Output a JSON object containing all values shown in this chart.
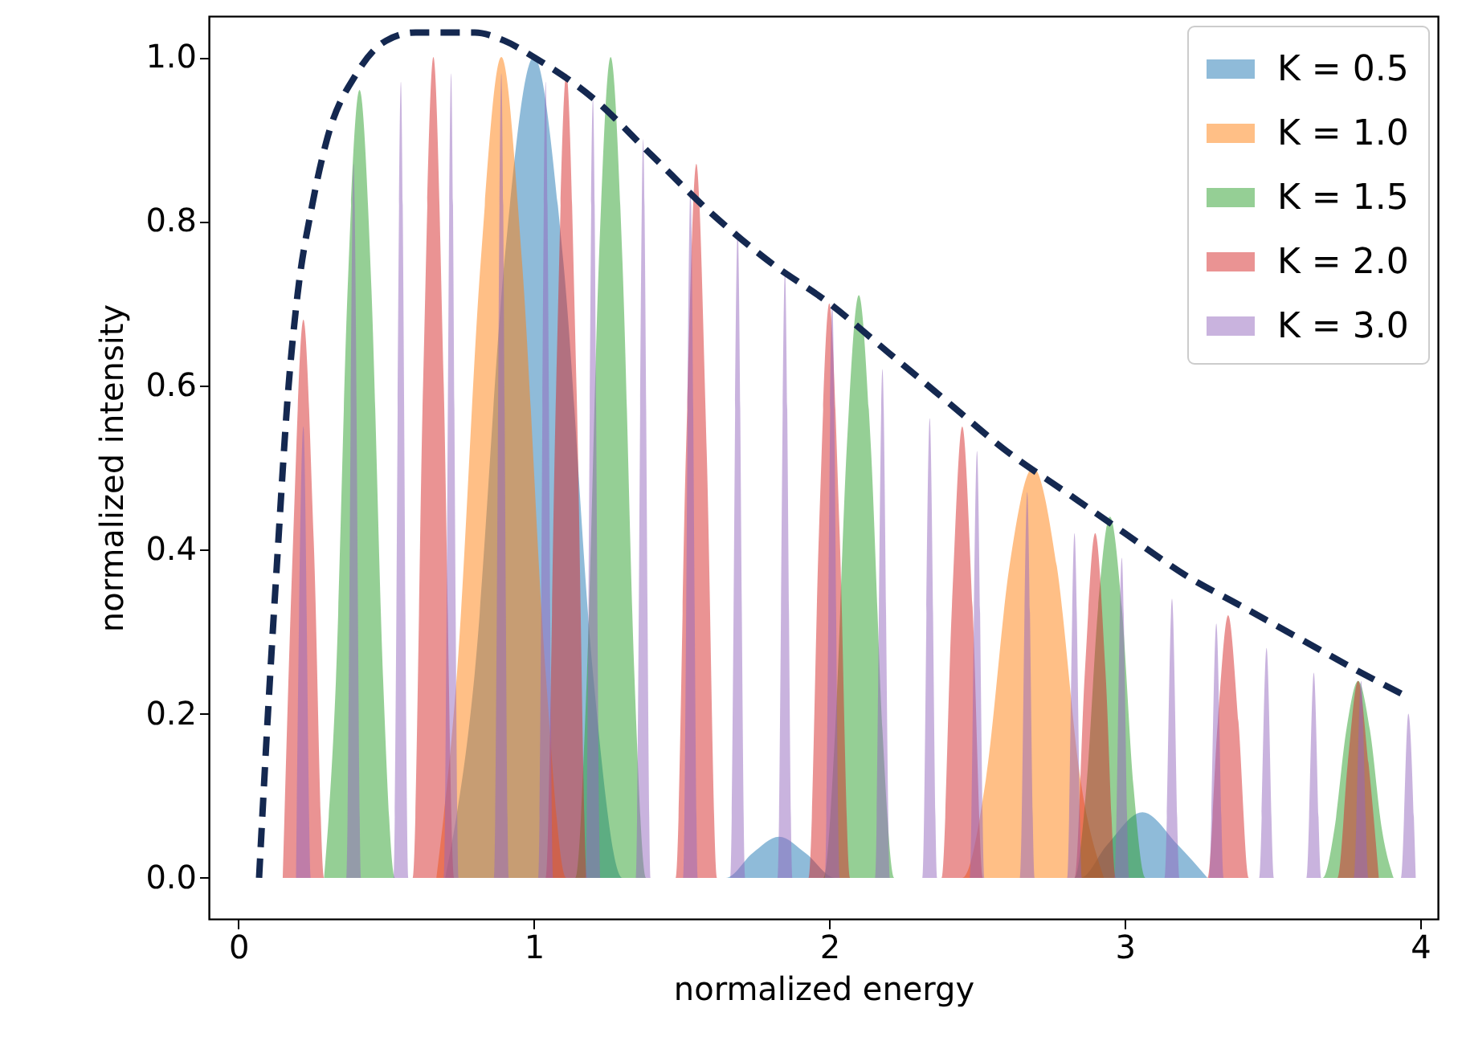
{
  "chart_data": {
    "type": "area",
    "xlabel": "normalized energy",
    "ylabel": "normalized intensity",
    "xlim": [
      -0.1,
      4.06
    ],
    "ylim": [
      -0.05,
      1.05
    ],
    "xticks": [
      {
        "value": 0,
        "label": "0"
      },
      {
        "value": 1,
        "label": "1"
      },
      {
        "value": 2,
        "label": "2"
      },
      {
        "value": 3,
        "label": "3"
      },
      {
        "value": 4,
        "label": "4"
      }
    ],
    "yticks": [
      {
        "value": 0,
        "label": "0.0"
      },
      {
        "value": 0.2,
        "label": "0.2"
      },
      {
        "value": 0.4,
        "label": "0.4"
      },
      {
        "value": 0.6,
        "label": "0.6"
      },
      {
        "value": 0.8,
        "label": "0.8"
      },
      {
        "value": 1,
        "label": "1.0"
      }
    ],
    "legend": "top right",
    "series": [
      {
        "name": "K = 0.5",
        "color": "#1f77b4",
        "x": [
          0.7,
          0.8,
          0.9,
          1.0,
          1.1,
          1.2,
          1.3,
          1.65,
          1.74,
          1.83,
          1.92,
          2.02,
          2.85,
          2.94,
          3.06,
          3.18,
          3.28
        ],
        "values": [
          0,
          0.25,
          0.75,
          1.0,
          0.75,
          0.25,
          0,
          0,
          0.03,
          0.05,
          0.03,
          0,
          0,
          0.04,
          0.08,
          0.04,
          0
        ]
      },
      {
        "name": "K = 1.0",
        "color": "#ff7f0e",
        "x": [
          0.67,
          0.74,
          0.82,
          0.89,
          0.96,
          1.04,
          1.11,
          2.45,
          2.53,
          2.61,
          2.69,
          2.77,
          2.85,
          2.93
        ],
        "values": [
          0,
          0.25,
          0.75,
          1.0,
          0.75,
          0.25,
          0,
          0,
          0.12,
          0.38,
          0.5,
          0.38,
          0.12,
          0
        ]
      },
      {
        "name": "K = 1.5",
        "color": "#2ca02c",
        "x": [
          0.29,
          0.33,
          0.37,
          0.41,
          0.45,
          0.49,
          0.53,
          1.14,
          1.18,
          1.22,
          1.26,
          1.3,
          1.34,
          1.38,
          1.98,
          2.02,
          2.06,
          2.1,
          2.14,
          2.18,
          2.22,
          2.83,
          2.87,
          2.91,
          2.95,
          2.99,
          3.03,
          3.07,
          3.67,
          3.71,
          3.75,
          3.79,
          3.83,
          3.87,
          3.91
        ],
        "values": [
          0,
          0.24,
          0.72,
          0.96,
          0.72,
          0.24,
          0,
          0,
          0.25,
          0.75,
          1.0,
          0.75,
          0.25,
          0,
          0,
          0.18,
          0.53,
          0.71,
          0.53,
          0.18,
          0,
          0,
          0.11,
          0.33,
          0.44,
          0.33,
          0.11,
          0,
          0,
          0.06,
          0.18,
          0.24,
          0.18,
          0.06,
          0
        ]
      },
      {
        "name": "K = 2.0",
        "color": "#d62728",
        "x": [
          0.15,
          0.185,
          0.22,
          0.255,
          0.29,
          0.59,
          0.625,
          0.66,
          0.695,
          0.73,
          1.04,
          1.075,
          1.11,
          1.145,
          1.18,
          1.48,
          1.515,
          1.55,
          1.585,
          1.62,
          1.93,
          1.965,
          2.0,
          2.035,
          2.07,
          2.38,
          2.415,
          2.45,
          2.485,
          2.52,
          2.83,
          2.865,
          2.9,
          2.935,
          2.97,
          3.28,
          3.315,
          3.35,
          3.385,
          3.42,
          3.72,
          3.755,
          3.79,
          3.825,
          3.86
        ],
        "values": [
          0,
          0.41,
          0.68,
          0.41,
          0,
          0,
          0.6,
          1.0,
          0.6,
          0,
          0,
          0.59,
          0.98,
          0.59,
          0,
          0,
          0.52,
          0.87,
          0.52,
          0,
          0,
          0.42,
          0.7,
          0.42,
          0,
          0,
          0.33,
          0.55,
          0.33,
          0,
          0,
          0.25,
          0.42,
          0.25,
          0,
          0,
          0.19,
          0.32,
          0.19,
          0,
          0,
          0.14,
          0.24,
          0.14,
          0
        ]
      },
      {
        "name": "K = 3.0",
        "color": "#9467bd",
        "x": [
          0.195,
          0.22,
          0.245,
          0.365,
          0.39,
          0.415,
          0.525,
          0.55,
          0.575,
          0.695,
          0.72,
          0.745,
          0.865,
          0.89,
          0.915,
          1.015,
          1.04,
          1.065,
          1.175,
          1.2,
          1.225,
          1.345,
          1.37,
          1.395,
          1.505,
          1.53,
          1.555,
          1.665,
          1.69,
          1.715,
          1.825,
          1.85,
          1.875,
          1.985,
          2.01,
          2.035,
          2.155,
          2.18,
          2.205,
          2.315,
          2.34,
          2.365,
          2.475,
          2.5,
          2.525,
          2.645,
          2.67,
          2.695,
          2.805,
          2.83,
          2.855,
          2.965,
          2.99,
          3.015,
          3.135,
          3.16,
          3.185,
          3.285,
          3.31,
          3.335,
          3.455,
          3.48,
          3.505,
          3.615,
          3.64,
          3.665,
          3.775,
          3.8,
          3.825,
          3.935,
          3.96,
          3.985
        ],
        "values": [
          0,
          0.55,
          0,
          0,
          0.87,
          0,
          0,
          0.97,
          0,
          0,
          0.98,
          0,
          0,
          0.98,
          0,
          0,
          0.97,
          0,
          0,
          0.95,
          0,
          0,
          0.9,
          0,
          0,
          0.84,
          0,
          0,
          0.79,
          0,
          0,
          0.74,
          0,
          0,
          0.7,
          0,
          0,
          0.62,
          0,
          0,
          0.56,
          0,
          0,
          0.52,
          0,
          0,
          0.47,
          0,
          0,
          0.42,
          0,
          0,
          0.39,
          0,
          0,
          0.34,
          0,
          0,
          0.31,
          0,
          0,
          0.28,
          0,
          0,
          0.25,
          0,
          0,
          0.24,
          0,
          0,
          0.2,
          0
        ]
      },
      {
        "type": "line",
        "line_style": "dashed",
        "color": "#142850",
        "x": [
          0.07,
          0.1,
          0.13,
          0.17,
          0.2,
          0.25,
          0.3,
          0.4,
          0.5,
          0.6,
          0.7,
          0.8,
          0.9,
          1.0,
          1.2,
          1.4,
          1.6,
          1.8,
          2.0,
          2.2,
          2.4,
          2.6,
          2.8,
          3.0,
          3.2,
          3.4,
          3.6,
          3.8,
          3.96
        ],
        "values": [
          0,
          0.2,
          0.38,
          0.6,
          0.71,
          0.82,
          0.9,
          0.98,
          1.02,
          1.03,
          1.03,
          1.03,
          1.02,
          1.0,
          0.95,
          0.88,
          0.81,
          0.75,
          0.7,
          0.64,
          0.58,
          0.52,
          0.47,
          0.42,
          0.37,
          0.33,
          0.29,
          0.25,
          0.22
        ]
      }
    ]
  }
}
